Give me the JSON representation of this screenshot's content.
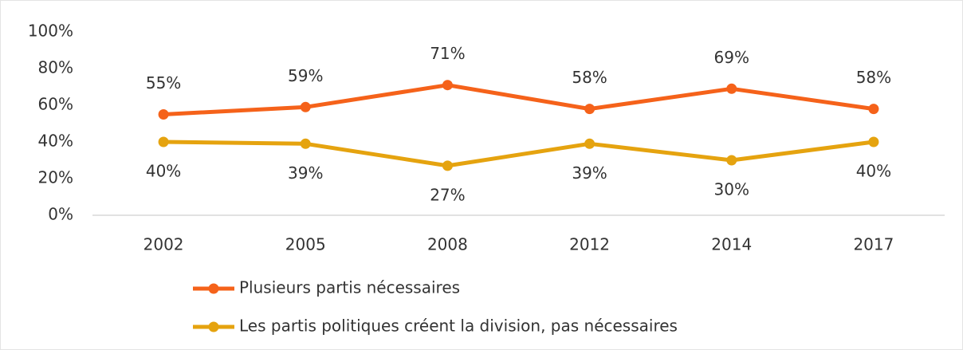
{
  "chart_data": {
    "type": "line",
    "categories": [
      "2002",
      "2005",
      "2008",
      "2012",
      "2014",
      "2017"
    ],
    "series": [
      {
        "name": "Plusieurs partis nécessaires",
        "color": "#f5621a",
        "values": [
          55,
          59,
          71,
          58,
          69,
          58
        ],
        "value_labels": [
          "55%",
          "59%",
          "71%",
          "58%",
          "69%",
          "58%"
        ]
      },
      {
        "name": "Les partis politiques créent la division, pas nécessaires",
        "color": "#e5a30f",
        "values": [
          40,
          39,
          27,
          39,
          30,
          40
        ],
        "value_labels": [
          "40%",
          "39%",
          "27%",
          "39%",
          "30%",
          "40%"
        ]
      }
    ],
    "ylim": [
      0,
      100
    ],
    "yticks": [
      {
        "value": 0,
        "label": "0%"
      },
      {
        "value": 20,
        "label": "20%"
      },
      {
        "value": 40,
        "label": "40%"
      },
      {
        "value": 60,
        "label": "60%"
      },
      {
        "value": 80,
        "label": "80%"
      },
      {
        "value": 100,
        "label": "100%"
      }
    ],
    "grid": false,
    "legend": "bottom"
  }
}
